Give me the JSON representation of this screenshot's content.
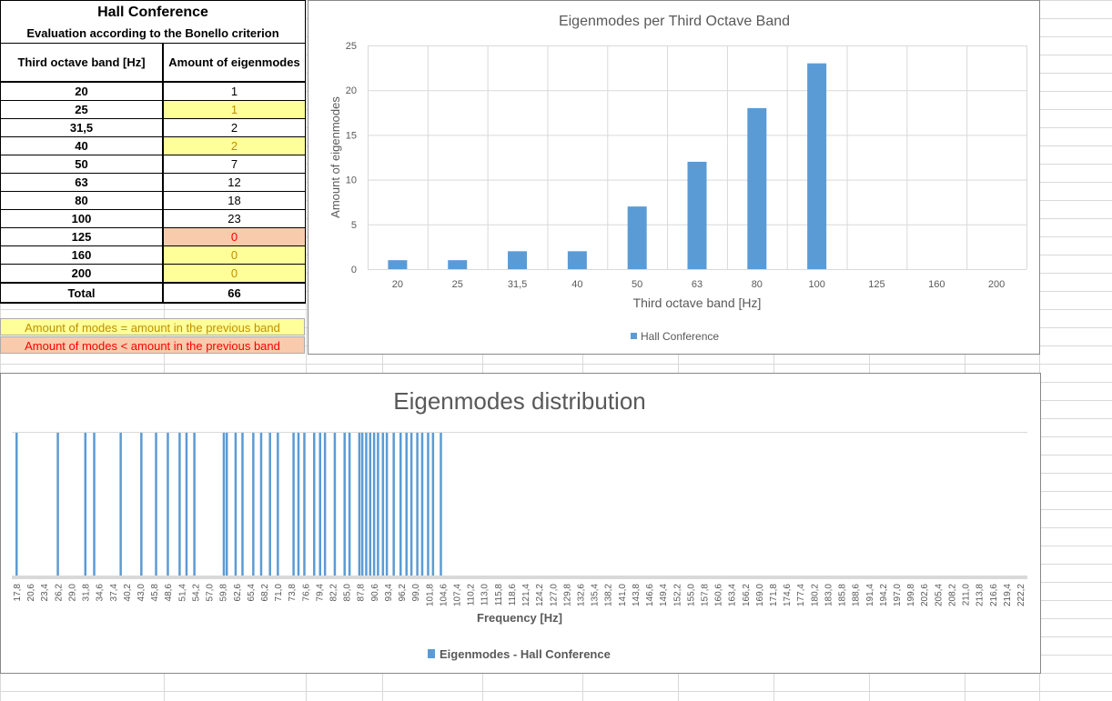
{
  "table": {
    "title": "Hall Conference",
    "subtitle": "Evaluation according to the Bonello criterion",
    "col1": "Third octave band [Hz]",
    "col2": "Amount of eigenmodes",
    "rows": [
      {
        "band": "20",
        "value": "1",
        "status": "normal"
      },
      {
        "band": "25",
        "value": "1",
        "status": "equal"
      },
      {
        "band": "31,5",
        "value": "2",
        "status": "normal"
      },
      {
        "band": "40",
        "value": "2",
        "status": "equal"
      },
      {
        "band": "50",
        "value": "7",
        "status": "normal"
      },
      {
        "band": "63",
        "value": "12",
        "status": "normal"
      },
      {
        "band": "80",
        "value": "18",
        "status": "normal"
      },
      {
        "band": "100",
        "value": "23",
        "status": "normal"
      },
      {
        "band": "125",
        "value": "0",
        "status": "less"
      },
      {
        "band": "160",
        "value": "0",
        "status": "equal"
      },
      {
        "band": "200",
        "value": "0",
        "status": "equal"
      }
    ],
    "total_label": "Total",
    "total_value": "66"
  },
  "legend": {
    "equal": "Amount of modes = amount in the previous band",
    "less": "Amount of modes < amount in the previous band"
  },
  "colors": {
    "bar": "#5b9bd5",
    "equal_bg": "#ffff99",
    "equal_text": "#c09000",
    "less_bg": "#f8cbad",
    "less_text": "#ff0000"
  },
  "chart_data": [
    {
      "type": "bar",
      "title": "Eigenmodes per Third Octave Band",
      "xlabel": "Third octave band [Hz]",
      "ylabel": "Amount of eigenmodes",
      "categories": [
        "20",
        "25",
        "31,5",
        "40",
        "50",
        "63",
        "80",
        "100",
        "125",
        "160",
        "200"
      ],
      "series": [
        {
          "name": "Hall Conference",
          "values": [
            1,
            1,
            2,
            2,
            7,
            12,
            18,
            23,
            0,
            0,
            0
          ]
        }
      ],
      "ylim": [
        0,
        25
      ],
      "yticks": [
        0,
        5,
        10,
        15,
        20,
        25
      ],
      "grid": true,
      "legend": "bottom"
    },
    {
      "type": "bar",
      "title": "Eigenmodes distribution",
      "xlabel": "Frequency [Hz]",
      "x_tick_labels": [
        "17,8",
        "20,6",
        "23,4",
        "26,2",
        "29,0",
        "31,8",
        "34,6",
        "37,4",
        "40,2",
        "43,0",
        "45,8",
        "48,6",
        "51,4",
        "54,2",
        "57,0",
        "59,8",
        "62,6",
        "65,4",
        "68,2",
        "71,0",
        "73,8",
        "76,6",
        "79,4",
        "82,2",
        "85,0",
        "87,8",
        "90,6",
        "93,4",
        "96,2",
        "99,0",
        "101,8",
        "104,6",
        "107,4",
        "110,2",
        "113,0",
        "115,8",
        "118,6",
        "121,4",
        "124,2",
        "127,0",
        "129,8",
        "132,6",
        "135,4",
        "138,2",
        "141,0",
        "143,8",
        "146,6",
        "149,4",
        "152,2",
        "155,0",
        "157,8",
        "160,6",
        "163,4",
        "166,2",
        "169,0",
        "171,8",
        "174,6",
        "177,4",
        "180,2",
        "183,0",
        "185,8",
        "188,6",
        "191,4",
        "194,2",
        "197,0",
        "199,8",
        "202,6",
        "205,4",
        "208,2",
        "211,0",
        "213,8",
        "216,6",
        "219,4",
        "222,2"
      ],
      "x_range": [
        17.8,
        222.2
      ],
      "mode_frequencies": [
        17.8,
        26.2,
        31.8,
        33.6,
        39.0,
        43.2,
        46.2,
        48.6,
        51.0,
        52.4,
        54.0,
        60.0,
        60.6,
        62.4,
        63.8,
        66.0,
        67.6,
        69.4,
        71.0,
        74.2,
        75.2,
        76.4,
        78.4,
        79.6,
        80.6,
        82.6,
        84.6,
        85.6,
        87.6,
        88.2,
        89.0,
        89.8,
        90.6,
        91.4,
        92.4,
        93.2,
        94.6,
        96.0,
        97.2,
        98.2,
        99.4,
        100.4,
        101.6,
        102.6,
        104.2
      ],
      "series": [
        {
          "name": "Eigenmodes - Hall Conference"
        }
      ],
      "legend": "bottom"
    }
  ]
}
